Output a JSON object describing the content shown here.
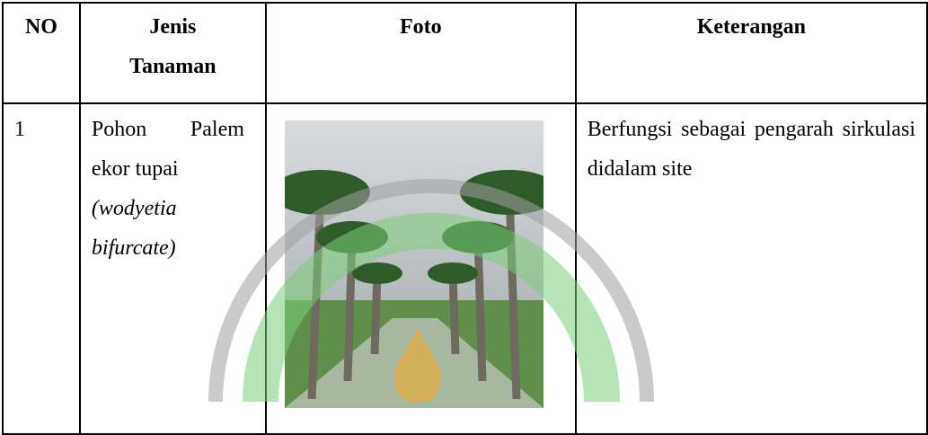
{
  "table": {
    "header": [
      "NO",
      "Jenis Tanaman",
      "Foto",
      "Keterangan"
    ],
    "rows": [
      {
        "no": "1",
        "jenis": "Pohon Palem ekor tupai",
        "latin": "(wodyetia bifurcate)",
        "keterangan": "Berfungsi sebagai pengarah sirkulasi didalam site"
      }
    ]
  }
}
